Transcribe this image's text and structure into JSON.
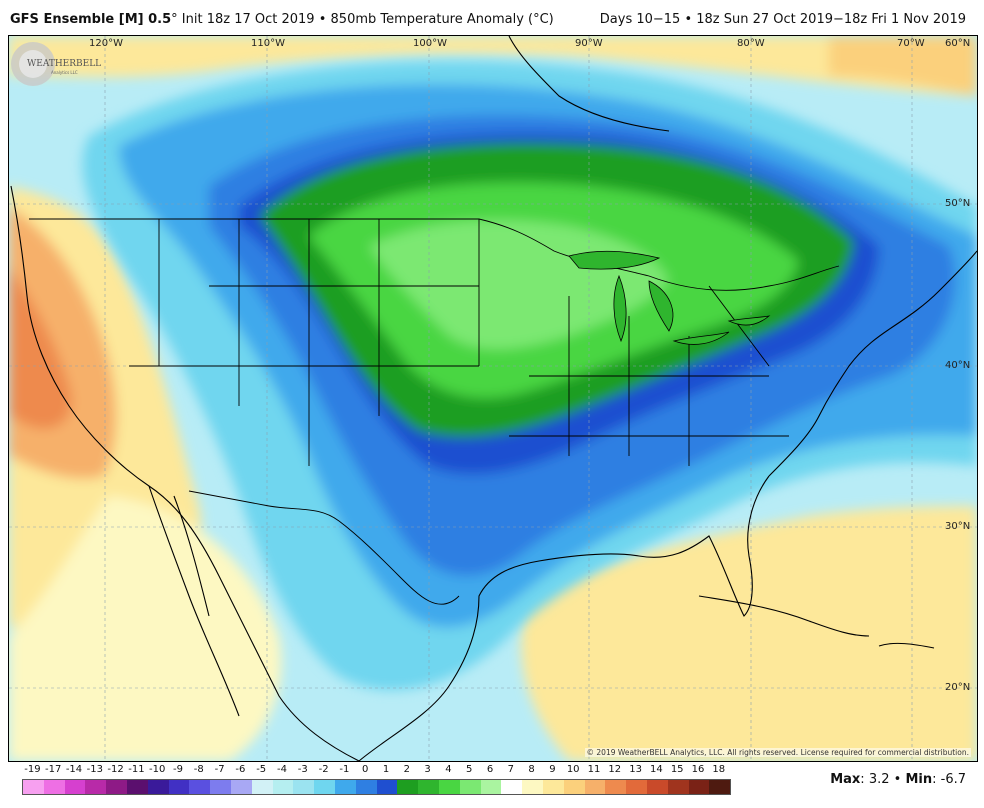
{
  "title": {
    "model": "GFS Ensemble [M] 0.5",
    "degree_mark": "°",
    "init": "Init 18z 17 Oct 2019",
    "bullet": "•",
    "field": "850mb Temperature Anomaly (",
    "unit": "°C)",
    "valid": "Days 10−15 • 18z Sun 27 Oct 2019−18z Fri 1 Nov 2019"
  },
  "map": {
    "longitudes": [
      "120°W",
      "110°W",
      "100°W",
      "90°W",
      "80°W",
      "70°W"
    ],
    "latitudes": [
      "60°N",
      "50°N",
      "40°N",
      "30°N",
      "20°N"
    ],
    "copyright": "© 2019 WeatherBELL Analytics, LLC. All rights reserved. License required for commercial distribution.",
    "logo_text": "WEATHERBELL",
    "logo_sub": "Analytics LLC"
  },
  "colorbar": {
    "labels": [
      "-19",
      "-17",
      "-14",
      "-13",
      "-12",
      "-11",
      "-10",
      "-9",
      "-8",
      "-7",
      "-6",
      "-5",
      "-4",
      "-3",
      "-2",
      "-1",
      "0",
      "1",
      "2",
      "3",
      "4",
      "5",
      "6",
      "7",
      "8",
      "9",
      "10",
      "11",
      "12",
      "13",
      "14",
      "15",
      "16",
      "18"
    ],
    "colors": [
      "#f7a0f0",
      "#ee6fe4",
      "#d640cf",
      "#b82aa8",
      "#8e1a86",
      "#5b0f6e",
      "#3a1a9a",
      "#4130c4",
      "#5a50e0",
      "#7d7cee",
      "#a8a8f4",
      "#d2f1f6",
      "#b5eef0",
      "#9be3f0",
      "#6fd6ef",
      "#3fa9ec",
      "#2f7fe2",
      "#1f4fd0",
      "#1e9e20",
      "#2fb52e",
      "#49d642",
      "#7be872",
      "#aaf4a0",
      "#ffffff",
      "#fdf8c2",
      "#fde89a",
      "#fbd07c",
      "#f6b06a",
      "#ee8a4e",
      "#e26a3a",
      "#c94a2a",
      "#a0341e",
      "#7a2216",
      "#4e1a10"
    ]
  },
  "stats": {
    "max_label": "Max",
    "max_value": "3.2",
    "separator": "•",
    "min_label": "Min",
    "min_value": "-6.7"
  }
}
